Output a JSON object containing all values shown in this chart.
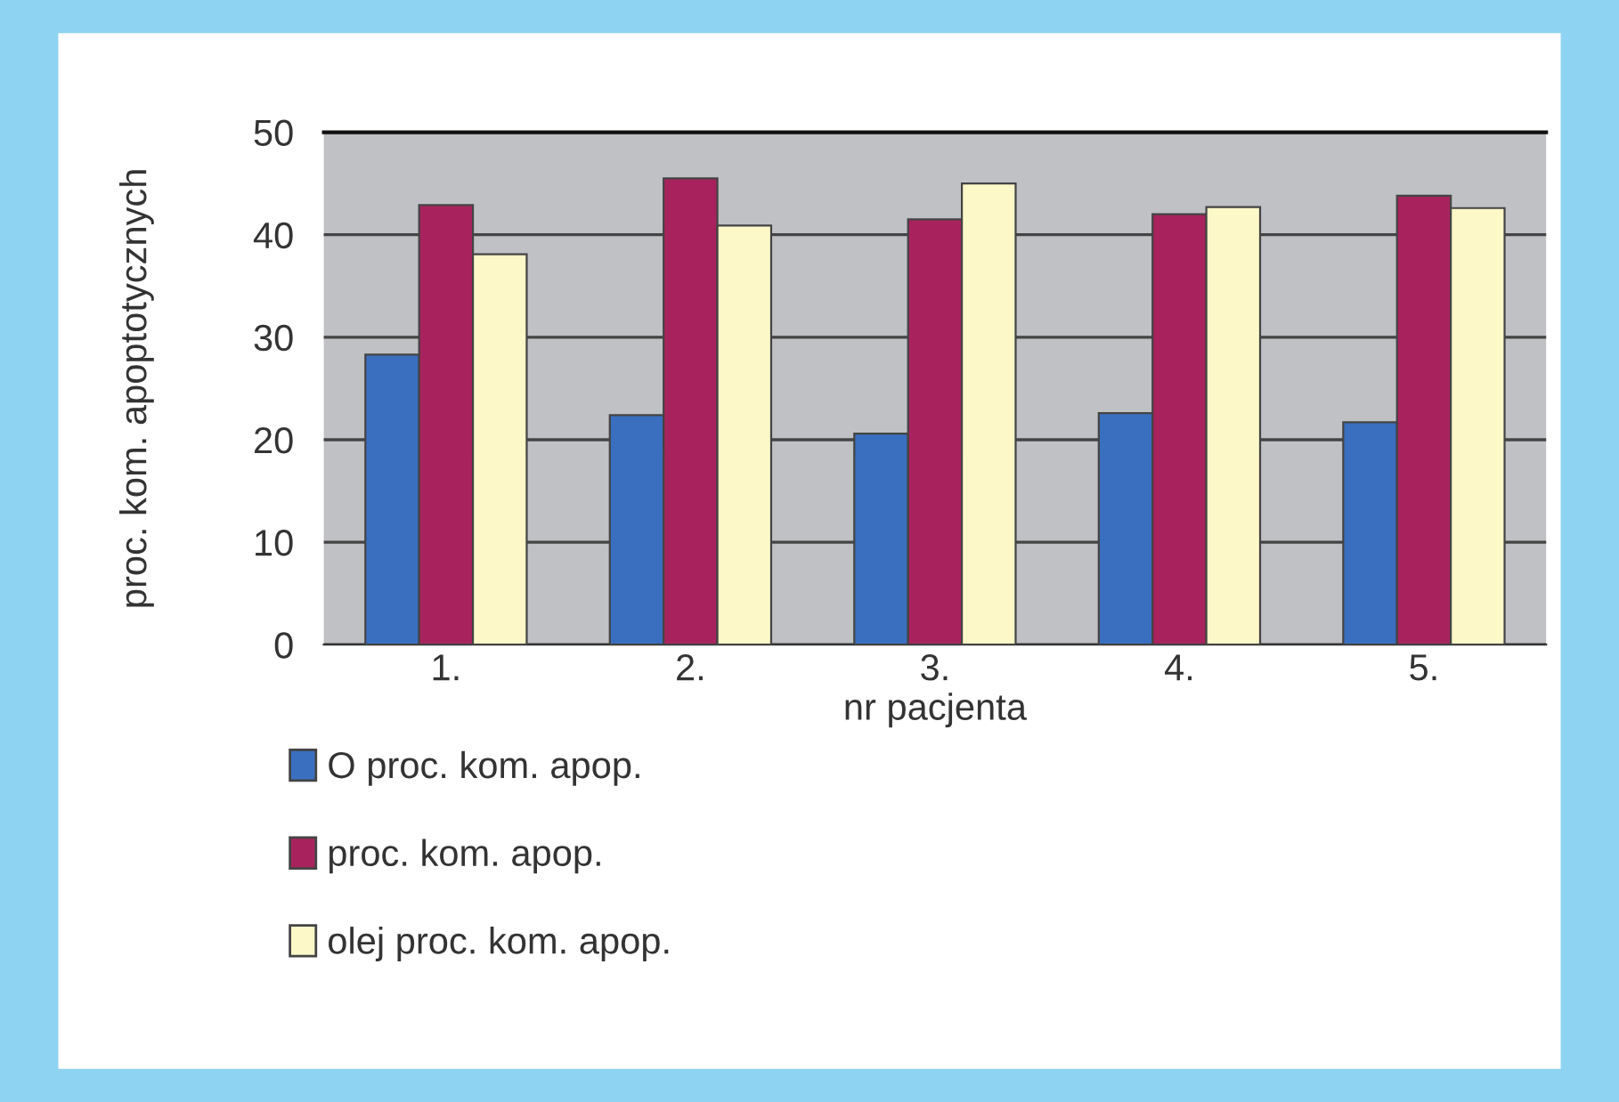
{
  "chart_data": {
    "type": "bar",
    "xlabel": "nr pacjenta",
    "ylabel": "proc. kom. apoptotycznych",
    "categories": [
      "1.",
      "2.",
      "3.",
      "4.",
      "5."
    ],
    "series": [
      {
        "name": "O proc. kom. apop.",
        "color": "#3a6fc0",
        "values": [
          28.3,
          22.4,
          20.6,
          22.6,
          21.7
        ]
      },
      {
        "name": "proc. kom. apop.",
        "color": "#a8235e",
        "values": [
          42.9,
          45.5,
          41.5,
          42.0,
          43.8
        ]
      },
      {
        "name": "olej proc. kom. apop.",
        "color": "#fdf8c8",
        "values": [
          38.1,
          40.9,
          45.0,
          42.7,
          42.6
        ]
      }
    ],
    "ylim": [
      0,
      50
    ],
    "yticks": [
      0,
      10,
      20,
      30,
      40,
      50
    ],
    "grid": "y",
    "legend": "bottom"
  }
}
